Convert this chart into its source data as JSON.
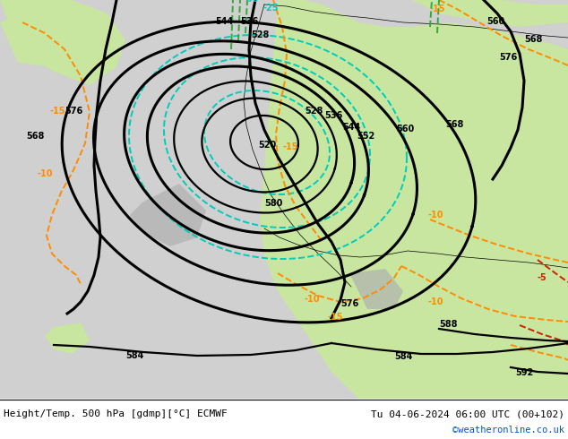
{
  "title_left": "Height/Temp. 500 hPa [gdmp][°C] ECMWF",
  "title_right": "Tu 04-06-2024 06:00 UTC (00+102)",
  "credit": "©weatheronline.co.uk",
  "bg_sea": "#d0d0d0",
  "bg_land": "#c8e6a0",
  "bg_gray": "#b0b0b0",
  "black": "#000000",
  "cyan": "#00ccbb",
  "orange": "#ff8c00",
  "red": "#cc2200",
  "green": "#33aa33",
  "credit_color": "#0055cc",
  "figsize": [
    6.34,
    4.9
  ],
  "dpi": 100
}
